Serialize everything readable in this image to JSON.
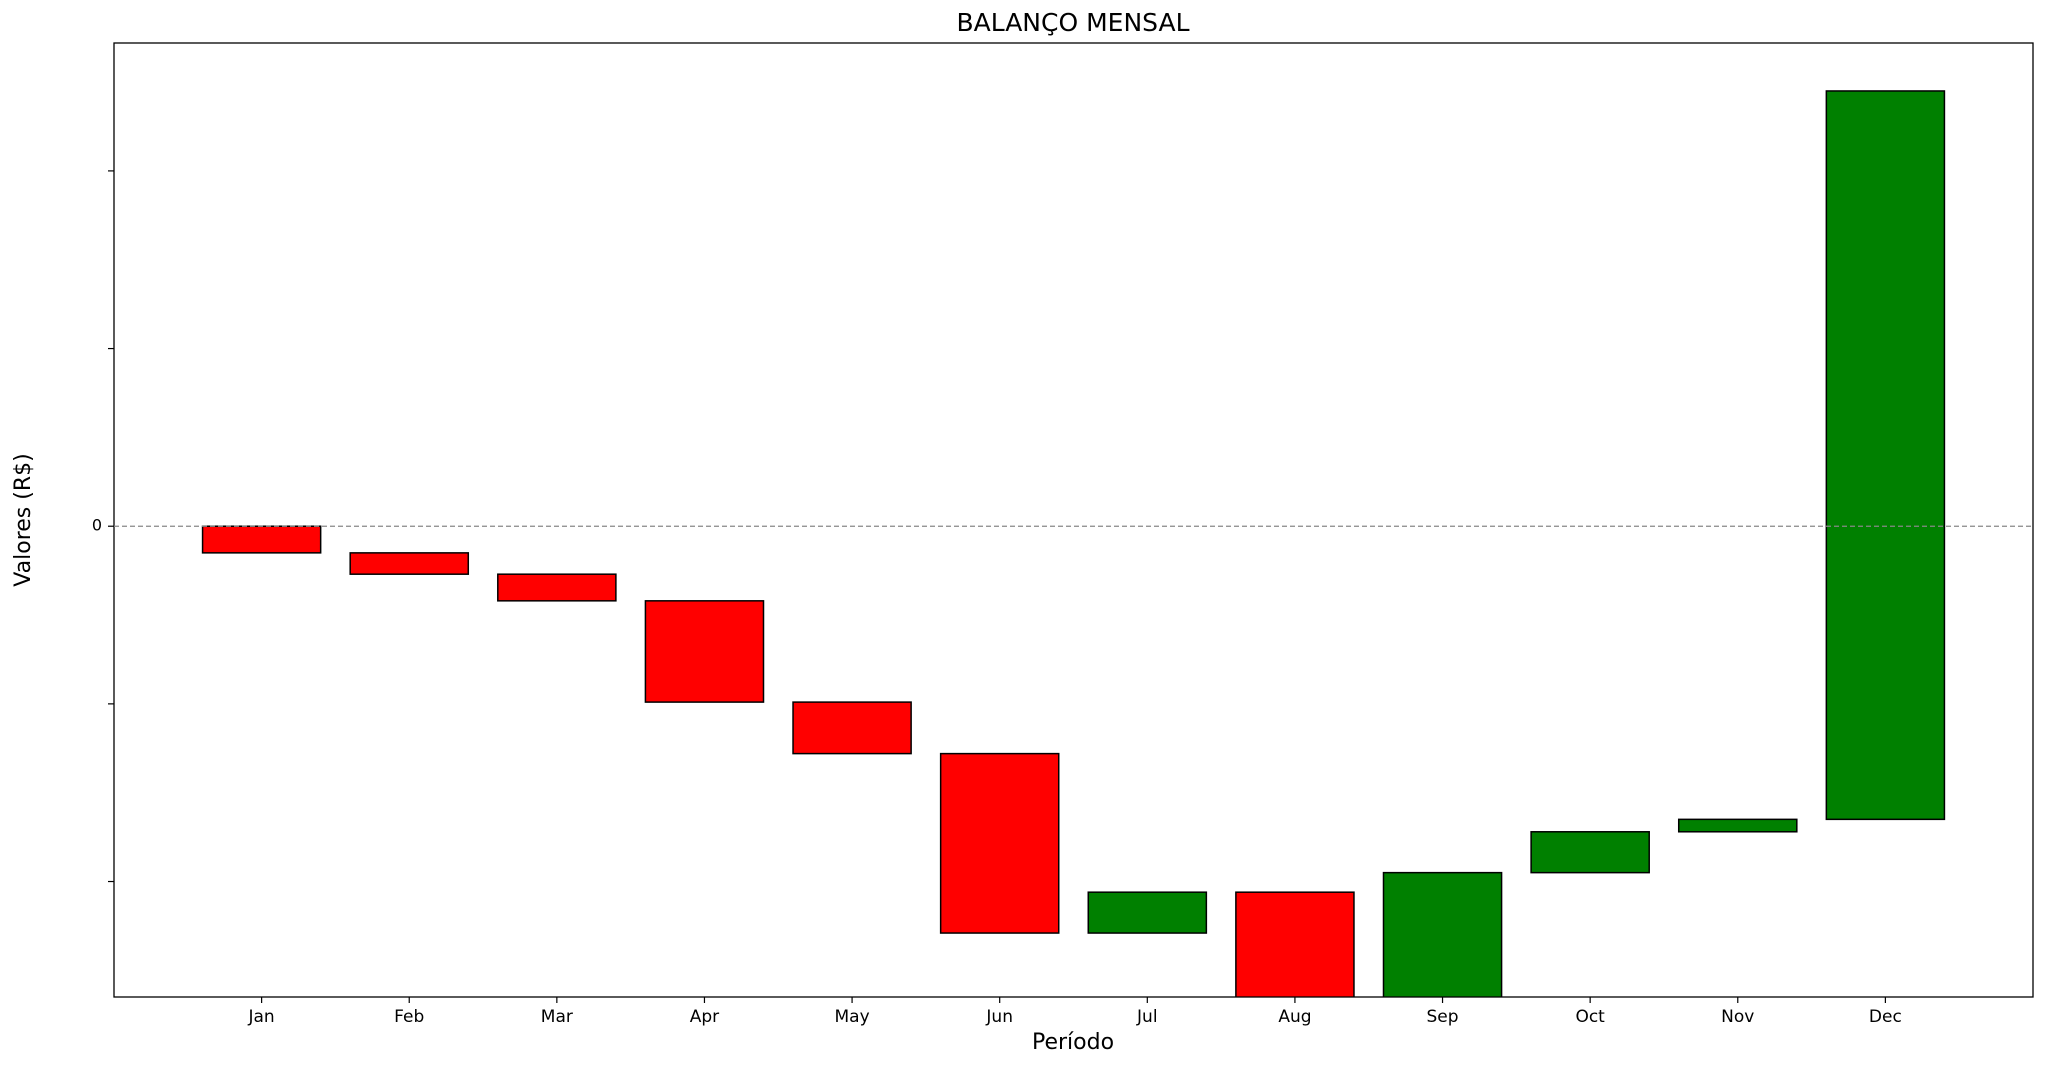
{
  "chart_data": {
    "type": "waterfall",
    "title": "BALANÇO MENSAL",
    "x_label": "Período",
    "y_label": "Valores (R$)",
    "categories": [
      "Jan",
      "Feb",
      "Mar",
      "Apr",
      "May",
      "Jun",
      "Jul",
      "Aug",
      "Sep",
      "Oct",
      "Nov",
      "Dec"
    ],
    "values": [
      -1500,
      -1200,
      -1500,
      -5700,
      -2900,
      -10100,
      2300,
      -8000,
      9100,
      2300,
      700,
      41000
    ],
    "colors": {
      "positive": "green",
      "negative": "red"
    },
    "ylim": [
      -26500,
      27200
    ],
    "yticks": [
      {
        "value": -20000,
        "label": null
      },
      {
        "value": -10000,
        "label": null
      },
      0,
      {
        "value": 10000,
        "label": null
      },
      {
        "value": 20000,
        "label": null
      }
    ]
  }
}
